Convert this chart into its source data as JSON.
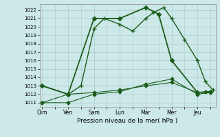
{
  "xlabel": "Pression niveau de la mer( hPa )",
  "bg_color": "#cce8e8",
  "grid_color": "#aacccc",
  "line_color": "#1a5c1a",
  "ylim": [
    1010.5,
    1022.7
  ],
  "yticks": [
    1011,
    1012,
    1013,
    1014,
    1015,
    1016,
    1017,
    1018,
    1019,
    1020,
    1021,
    1022
  ],
  "x_labels": [
    "Dim",
    "Ven",
    "Sam",
    "Lun",
    "Mar",
    "Mer",
    "Jeu"
  ],
  "x_positions": [
    0,
    1,
    2,
    3,
    4,
    5,
    6
  ],
  "xlim": [
    -0.1,
    6.7
  ],
  "series1_x": [
    0,
    1,
    1.5,
    2,
    2.4,
    3,
    3.5,
    4.0,
    4.3,
    4.7,
    5.0,
    5.5,
    6.0,
    6.3,
    6.6
  ],
  "series1_y": [
    1013.0,
    1012.0,
    1013.0,
    1019.8,
    1021.0,
    1020.3,
    1019.5,
    1021.0,
    1021.7,
    1022.3,
    1021.0,
    1018.5,
    1016.0,
    1013.5,
    1012.5
  ],
  "series2_x": [
    0,
    1,
    2,
    3,
    4,
    4.5,
    5,
    6,
    6.5
  ],
  "series2_y": [
    1013.0,
    1012.0,
    1021.0,
    1021.0,
    1022.3,
    1021.5,
    1016.0,
    1012.2,
    1012.3
  ],
  "series3_x": [
    0,
    1,
    2,
    3,
    4,
    5,
    6,
    6.5
  ],
  "series3_y": [
    1011.0,
    1011.0,
    1012.0,
    1012.3,
    1013.2,
    1013.8,
    1012.0,
    1012.2
  ],
  "series4_x": [
    0,
    1,
    2,
    3,
    4,
    5,
    6,
    6.3
  ],
  "series4_y": [
    1011.0,
    1012.0,
    1012.2,
    1012.5,
    1013.0,
    1013.4,
    1012.2,
    1012.3
  ],
  "marker1": "+",
  "marker2": "D",
  "marker3": "D",
  "marker4": "D",
  "lw1": 1.0,
  "lw2": 1.3,
  "lw3": 0.8,
  "lw4": 0.8,
  "ms1": 4.0,
  "ms2": 3.0,
  "ms3": 2.5,
  "ms4": 2.5
}
